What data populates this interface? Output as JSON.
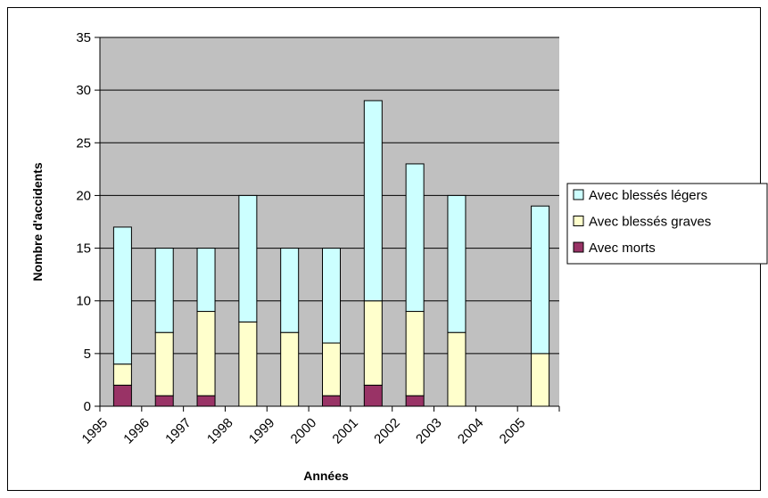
{
  "chart_data": {
    "type": "bar",
    "stacked": true,
    "categories": [
      "1995",
      "1996",
      "1997",
      "1998",
      "1999",
      "2000",
      "2001",
      "2002",
      "2003",
      "2004",
      "2005"
    ],
    "series": [
      {
        "name": "Avec morts",
        "color": "#993366",
        "values": [
          2,
          1,
          1,
          0,
          0,
          1,
          2,
          1,
          0,
          0,
          0
        ]
      },
      {
        "name": "Avec blessés graves",
        "color": "#FFFFCC",
        "values": [
          2,
          6,
          8,
          8,
          7,
          5,
          8,
          8,
          7,
          0,
          5
        ]
      },
      {
        "name": "Avec blessés légers",
        "color": "#CCFFFF",
        "values": [
          13,
          8,
          6,
          12,
          8,
          9,
          19,
          14,
          13,
          0,
          14
        ]
      }
    ],
    "xlabel": "Années",
    "ylabel": "Nombre d'accidents",
    "ylim": [
      0,
      35
    ],
    "yticks": [
      0,
      5,
      10,
      15,
      20,
      25,
      30,
      35
    ],
    "grid": true,
    "plot_background": "#C0C0C0",
    "legend_position": "right"
  }
}
